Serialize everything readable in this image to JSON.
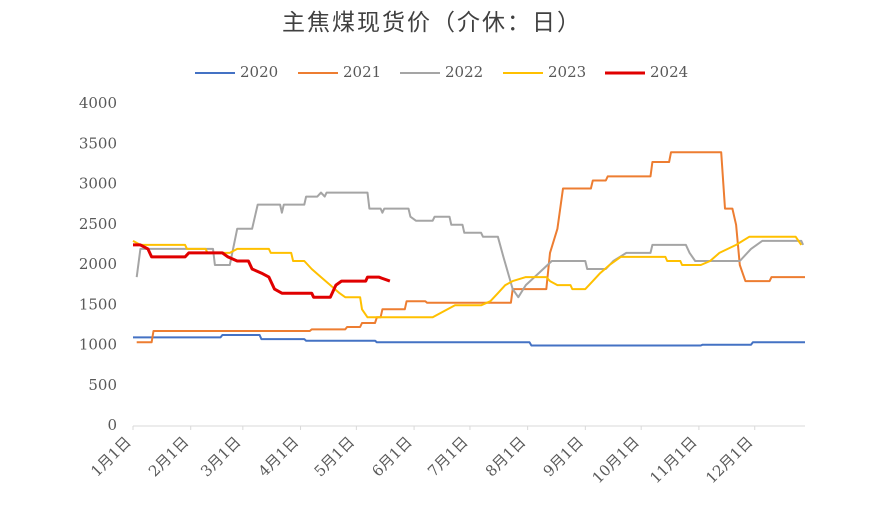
{
  "chart_data": {
    "type": "line",
    "title": "主焦煤现货价（介休：日）",
    "xlim": [
      0,
      361
    ],
    "ylim": [
      0,
      4000
    ],
    "yticks": [
      0,
      500,
      1000,
      1500,
      2000,
      2500,
      3000,
      3500,
      4000
    ],
    "xticks": [
      {
        "value": 0,
        "label": "1月1日"
      },
      {
        "value": 31,
        "label": "2月1日"
      },
      {
        "value": 59,
        "label": "3月1日"
      },
      {
        "value": 90,
        "label": "4月1日"
      },
      {
        "value": 120,
        "label": "5月1日"
      },
      {
        "value": 151,
        "label": "6月1日"
      },
      {
        "value": 181,
        "label": "7月1日"
      },
      {
        "value": 212,
        "label": "8月1日"
      },
      {
        "value": 243,
        "label": "9月1日"
      },
      {
        "value": 273,
        "label": "10月1日"
      },
      {
        "value": 304,
        "label": "11月1日"
      },
      {
        "value": 334,
        "label": "12月1日"
      }
    ],
    "grid": false,
    "legend": "top",
    "series": [
      {
        "name": "2020",
        "color": "#4472c4",
        "width": 2,
        "x": [
          0,
          47,
          48,
          68,
          69,
          92,
          93,
          130,
          131,
          213,
          214,
          305,
          306,
          332,
          333,
          361
        ],
        "values": [
          1100,
          1100,
          1130,
          1130,
          1080,
          1080,
          1060,
          1060,
          1040,
          1040,
          1000,
          1000,
          1010,
          1010,
          1040,
          1040
        ]
      },
      {
        "name": "2021",
        "color": "#ed7d31",
        "width": 2,
        "x": [
          2,
          10,
          11,
          95,
          96,
          114,
          115,
          122,
          123,
          130,
          131,
          133,
          134,
          146,
          147,
          157,
          158,
          203,
          204,
          222,
          224,
          228,
          231,
          246,
          247,
          254,
          255,
          278,
          279,
          288,
          289,
          316,
          318,
          322,
          324,
          326,
          329,
          342,
          343,
          361
        ],
        "values": [
          1040,
          1040,
          1180,
          1180,
          1200,
          1200,
          1230,
          1230,
          1280,
          1280,
          1350,
          1350,
          1450,
          1450,
          1550,
          1550,
          1530,
          1530,
          1700,
          1700,
          2150,
          2450,
          2950,
          2950,
          3050,
          3050,
          3100,
          3100,
          3280,
          3280,
          3400,
          3400,
          2700,
          2700,
          2500,
          2000,
          1800,
          1800,
          1850,
          1850
        ]
      },
      {
        "name": "2022",
        "color": "#a5a5a5",
        "width": 2,
        "x": [
          2,
          4,
          43,
          44,
          52,
          56,
          64,
          67,
          79,
          80,
          81,
          92,
          93,
          99,
          101,
          103,
          104,
          126,
          127,
          133,
          134,
          135,
          148,
          149,
          152,
          161,
          162,
          170,
          171,
          177,
          178,
          187,
          188,
          196,
          199,
          204,
          207,
          211,
          218,
          225,
          243,
          244,
          254,
          258,
          265,
          278,
          279,
          297,
          299,
          302,
          326,
          332,
          338,
          359,
          360
        ],
        "values": [
          1850,
          2200,
          2200,
          2000,
          2000,
          2450,
          2450,
          2750,
          2750,
          2650,
          2750,
          2750,
          2850,
          2850,
          2900,
          2850,
          2900,
          2900,
          2700,
          2700,
          2650,
          2700,
          2700,
          2600,
          2550,
          2550,
          2600,
          2600,
          2500,
          2500,
          2400,
          2400,
          2350,
          2350,
          2100,
          1700,
          1600,
          1750,
          1900,
          2050,
          2050,
          1950,
          1950,
          2050,
          2150,
          2150,
          2250,
          2250,
          2150,
          2050,
          2050,
          2200,
          2300,
          2300,
          2250
        ]
      },
      {
        "name": "2023",
        "color": "#ffc000",
        "width": 2,
        "x": [
          0,
          4,
          28,
          29,
          39,
          40,
          52,
          56,
          73,
          74,
          85,
          86,
          92,
          96,
          101,
          106,
          111,
          114,
          122,
          123,
          126,
          161,
          165,
          173,
          187,
          192,
          196,
          200,
          204,
          211,
          222,
          224,
          228,
          235,
          236,
          243,
          247,
          251,
          256,
          262,
          286,
          287,
          294,
          295,
          305,
          310,
          315,
          324,
          331,
          356,
          359
        ],
        "values": [
          2300,
          2250,
          2250,
          2200,
          2200,
          2150,
          2150,
          2200,
          2200,
          2150,
          2150,
          2050,
          2050,
          1950,
          1850,
          1750,
          1650,
          1600,
          1600,
          1450,
          1350,
          1350,
          1400,
          1500,
          1500,
          1550,
          1650,
          1750,
          1800,
          1850,
          1850,
          1800,
          1750,
          1750,
          1700,
          1700,
          1800,
          1900,
          2000,
          2100,
          2100,
          2050,
          2050,
          2000,
          2000,
          2050,
          2150,
          2250,
          2350,
          2350,
          2250
        ]
      },
      {
        "name": "2024",
        "color": "#e00000",
        "width": 3,
        "x": [
          0,
          4,
          8,
          10,
          28,
          30,
          48,
          51,
          56,
          62,
          64,
          69,
          73,
          76,
          80,
          96,
          97,
          106,
          109,
          112,
          125,
          126,
          132,
          138
        ],
        "values": [
          2250,
          2250,
          2200,
          2100,
          2100,
          2150,
          2150,
          2100,
          2050,
          2050,
          1950,
          1900,
          1850,
          1700,
          1650,
          1650,
          1600,
          1600,
          1750,
          1800,
          1800,
          1850,
          1850,
          1800
        ]
      }
    ]
  }
}
